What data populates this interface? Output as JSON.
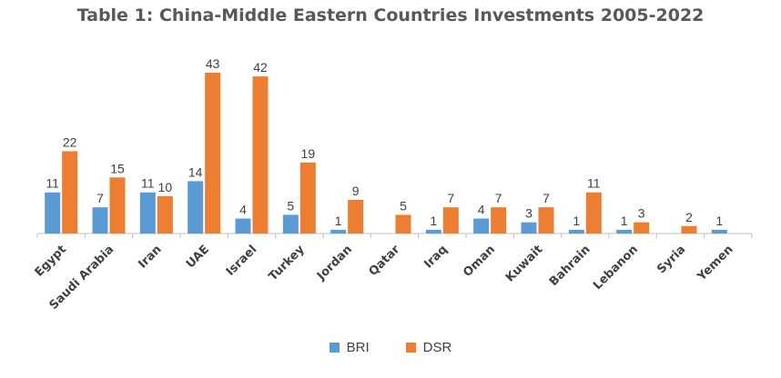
{
  "title": "Table 1: China-Middle Eastern Countries Investments 2005-2022",
  "chart_data": {
    "type": "bar",
    "title": "Table 1: China-Middle Eastern Countries Investments 2005-2022",
    "categories": [
      "Egypt",
      "Saudi Arabia",
      "Iran",
      "UAE",
      "Israel",
      "Turkey",
      "Jordan",
      "Qatar",
      "Iraq",
      "Oman",
      "Kuwait",
      "Bahrain",
      "Lebanon",
      "Syria",
      "Yemen"
    ],
    "series": [
      {
        "name": "BRI",
        "color": "#5B9BD5",
        "values": [
          11,
          7,
          11,
          14,
          4,
          5,
          1,
          null,
          1,
          4,
          3,
          1,
          1,
          null,
          1
        ]
      },
      {
        "name": "DSR",
        "color": "#ED7D31",
        "values": [
          22,
          15,
          10,
          43,
          42,
          19,
          9,
          5,
          7,
          7,
          7,
          11,
          3,
          2,
          null
        ]
      }
    ],
    "xlabel": "",
    "ylabel": "",
    "ylim": [
      0,
      43
    ],
    "grid": false,
    "data_labels": true,
    "legend_position": "bottom"
  }
}
